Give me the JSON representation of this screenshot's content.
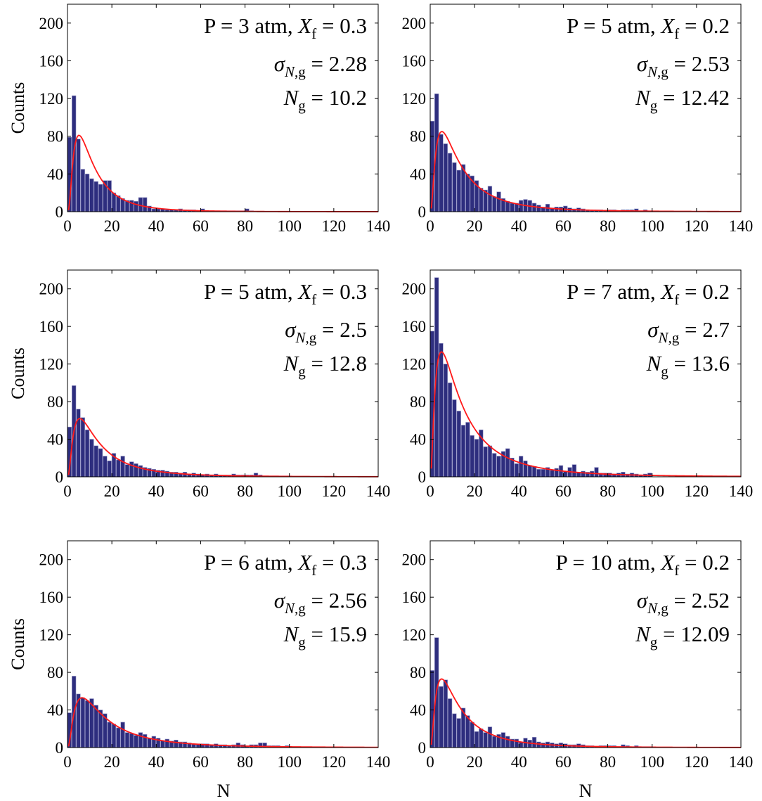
{
  "figure": {
    "ylabel": "Counts",
    "xlabel": "N",
    "x_ticks": [
      0,
      20,
      40,
      60,
      80,
      100,
      120,
      140
    ],
    "y_ticks": [
      0,
      40,
      80,
      120,
      160,
      200
    ],
    "colors": {
      "bar": "#2e2e7e",
      "bar_edge": "#9a9ac8",
      "fit": "#ff1a1a",
      "axis": "#000000"
    }
  },
  "chart_data": [
    {
      "type": "bar",
      "panel": "top-left",
      "xlim": [
        0,
        140
      ],
      "ylim": [
        0,
        220
      ],
      "grid": false,
      "annotation": {
        "pressure": "P = 3 atm, ",
        "xf_value": " = 0.3",
        "sigma_value": " = 2.28",
        "ng_value": " = 10.2"
      },
      "bin_width": 2,
      "x": [
        1,
        3,
        5,
        7,
        9,
        11,
        13,
        15,
        17,
        19,
        21,
        23,
        25,
        27,
        29,
        31,
        33,
        35,
        37,
        39,
        41,
        43,
        45,
        47,
        49,
        51,
        53,
        55,
        57,
        59,
        61,
        63,
        65,
        67,
        69,
        71,
        73,
        75,
        77,
        79,
        81,
        83
      ],
      "values": [
        79,
        123,
        77,
        45,
        40,
        35,
        32,
        29,
        33,
        33,
        20,
        17,
        14,
        12,
        12,
        11,
        15,
        15,
        6,
        3,
        3,
        3,
        2,
        2,
        2,
        3,
        2,
        2,
        2,
        1,
        3,
        1,
        1,
        1,
        1,
        1,
        1,
        1,
        1,
        1,
        3,
        1
      ],
      "fit": {
        "sigma_g": 2.28,
        "N_g": 10.2,
        "peak": 81
      }
    },
    {
      "type": "bar",
      "panel": "top-right",
      "xlim": [
        0,
        140
      ],
      "ylim": [
        0,
        220
      ],
      "grid": false,
      "annotation": {
        "pressure": "P = 5 atm, ",
        "xf_value": " = 0.2",
        "sigma_value": " = 2.53",
        "ng_value": " = 12.42"
      },
      "bin_width": 2,
      "x": [
        1,
        3,
        5,
        7,
        9,
        11,
        13,
        15,
        17,
        19,
        21,
        23,
        25,
        27,
        29,
        31,
        33,
        35,
        37,
        39,
        41,
        43,
        45,
        47,
        49,
        51,
        53,
        55,
        57,
        59,
        61,
        63,
        65,
        67,
        69,
        71,
        73,
        75,
        77,
        79,
        81,
        83,
        85,
        87,
        89,
        91,
        93,
        95,
        97,
        99
      ],
      "values": [
        96,
        125,
        82,
        72,
        62,
        52,
        44,
        50,
        40,
        38,
        33,
        25,
        23,
        27,
        16,
        21,
        14,
        11,
        9,
        9,
        12,
        13,
        12,
        9,
        7,
        5,
        8,
        4,
        5,
        5,
        6,
        4,
        3,
        4,
        3,
        2,
        2,
        2,
        2,
        1,
        2,
        2,
        1,
        2,
        2,
        2,
        3,
        1,
        2,
        1
      ],
      "fit": {
        "sigma_g": 2.53,
        "N_g": 12.42,
        "peak": 85
      }
    },
    {
      "type": "bar",
      "panel": "middle-left",
      "xlim": [
        0,
        140
      ],
      "ylim": [
        0,
        220
      ],
      "grid": false,
      "annotation": {
        "pressure": "P = 5 atm, ",
        "xf_value": " = 0.3",
        "sigma_value": " = 2.5",
        "ng_value": " = 12.8"
      },
      "bin_width": 2,
      "x": [
        1,
        3,
        5,
        7,
        9,
        11,
        13,
        15,
        17,
        19,
        21,
        23,
        25,
        27,
        29,
        31,
        33,
        35,
        37,
        39,
        41,
        43,
        45,
        47,
        49,
        51,
        53,
        55,
        57,
        59,
        61,
        63,
        65,
        67,
        69,
        71,
        73,
        75,
        77,
        79,
        81,
        83,
        85,
        87,
        89,
        91,
        93,
        95,
        97,
        99
      ],
      "values": [
        53,
        97,
        72,
        63,
        50,
        40,
        33,
        30,
        22,
        17,
        25,
        18,
        22,
        13,
        16,
        14,
        12,
        10,
        9,
        8,
        7,
        7,
        6,
        5,
        5,
        4,
        5,
        3,
        4,
        3,
        2,
        3,
        2,
        3,
        2,
        2,
        2,
        3,
        2,
        2,
        2,
        2,
        4,
        2,
        1,
        1,
        1,
        1,
        1,
        1
      ],
      "fit": {
        "sigma_g": 2.5,
        "N_g": 12.8,
        "peak": 62
      }
    },
    {
      "type": "bar",
      "panel": "middle-right",
      "xlim": [
        0,
        140
      ],
      "ylim": [
        0,
        220
      ],
      "grid": false,
      "annotation": {
        "pressure": "P = 7 atm, ",
        "xf_value": " = 0.2",
        "sigma_value": " = 2.7",
        "ng_value": " = 13.6"
      },
      "bin_width": 2,
      "x": [
        1,
        3,
        5,
        7,
        9,
        11,
        13,
        15,
        17,
        19,
        21,
        23,
        25,
        27,
        29,
        31,
        33,
        35,
        37,
        39,
        41,
        43,
        45,
        47,
        49,
        51,
        53,
        55,
        57,
        59,
        61,
        63,
        65,
        67,
        69,
        71,
        73,
        75,
        77,
        79,
        81,
        83,
        85,
        87,
        89,
        91,
        93,
        95,
        97,
        99
      ],
      "values": [
        155,
        212,
        142,
        120,
        100,
        82,
        70,
        55,
        58,
        44,
        40,
        50,
        32,
        33,
        25,
        22,
        27,
        30,
        20,
        14,
        22,
        17,
        12,
        11,
        8,
        8,
        10,
        7,
        9,
        12,
        6,
        10,
        13,
        5,
        6,
        5,
        6,
        10,
        4,
        4,
        4,
        3,
        4,
        5,
        3,
        4,
        3,
        2,
        3,
        4
      ],
      "fit": {
        "sigma_g": 2.7,
        "N_g": 13.6,
        "peak": 133
      }
    },
    {
      "type": "bar",
      "panel": "bottom-left",
      "xlim": [
        0,
        140
      ],
      "ylim": [
        0,
        220
      ],
      "grid": false,
      "annotation": {
        "pressure": "P = 6 atm, ",
        "xf_value": " = 0.3",
        "sigma_value": " = 2.56",
        "ng_value": " = 15.9"
      },
      "bin_width": 2,
      "x": [
        1,
        3,
        5,
        7,
        9,
        11,
        13,
        15,
        17,
        19,
        21,
        23,
        25,
        27,
        29,
        31,
        33,
        35,
        37,
        39,
        41,
        43,
        45,
        47,
        49,
        51,
        53,
        55,
        57,
        59,
        61,
        63,
        65,
        67,
        69,
        71,
        73,
        75,
        77,
        79,
        81,
        83,
        85,
        87,
        89,
        91,
        93,
        95,
        97,
        99
      ],
      "values": [
        37,
        76,
        57,
        53,
        50,
        52,
        45,
        40,
        36,
        27,
        25,
        21,
        27,
        16,
        15,
        13,
        16,
        14,
        10,
        12,
        10,
        7,
        9,
        7,
        8,
        6,
        6,
        5,
        4,
        4,
        4,
        4,
        3,
        4,
        3,
        3,
        2,
        3,
        5,
        3,
        2,
        3,
        3,
        5,
        5,
        2,
        2,
        2,
        1,
        2
      ],
      "fit": {
        "sigma_g": 2.56,
        "N_g": 15.9,
        "peak": 53
      }
    },
    {
      "type": "bar",
      "panel": "bottom-right",
      "xlim": [
        0,
        140
      ],
      "ylim": [
        0,
        220
      ],
      "grid": false,
      "annotation": {
        "pressure": "P = 10 atm, ",
        "xf_value": " = 0.2",
        "sigma_value": " = 2.52",
        "ng_value": " = 12.09"
      },
      "bin_width": 2,
      "x": [
        1,
        3,
        5,
        7,
        9,
        11,
        13,
        15,
        17,
        19,
        21,
        23,
        25,
        27,
        29,
        31,
        33,
        35,
        37,
        39,
        41,
        43,
        45,
        47,
        49,
        51,
        53,
        55,
        57,
        59,
        61,
        63,
        65,
        67,
        69,
        71,
        73,
        75,
        77,
        79,
        81,
        83,
        85,
        87,
        89,
        91,
        93,
        95,
        97,
        99
      ],
      "values": [
        82,
        117,
        65,
        72,
        52,
        36,
        31,
        42,
        34,
        27,
        17,
        20,
        16,
        22,
        12,
        14,
        16,
        12,
        9,
        9,
        6,
        10,
        8,
        11,
        6,
        5,
        6,
        5,
        4,
        5,
        4,
        3,
        3,
        4,
        3,
        2,
        2,
        1,
        2,
        2,
        2,
        2,
        1,
        3,
        2,
        1,
        2,
        1,
        1,
        1
      ],
      "fit": {
        "sigma_g": 2.52,
        "N_g": 12.09,
        "peak": 73
      }
    }
  ]
}
